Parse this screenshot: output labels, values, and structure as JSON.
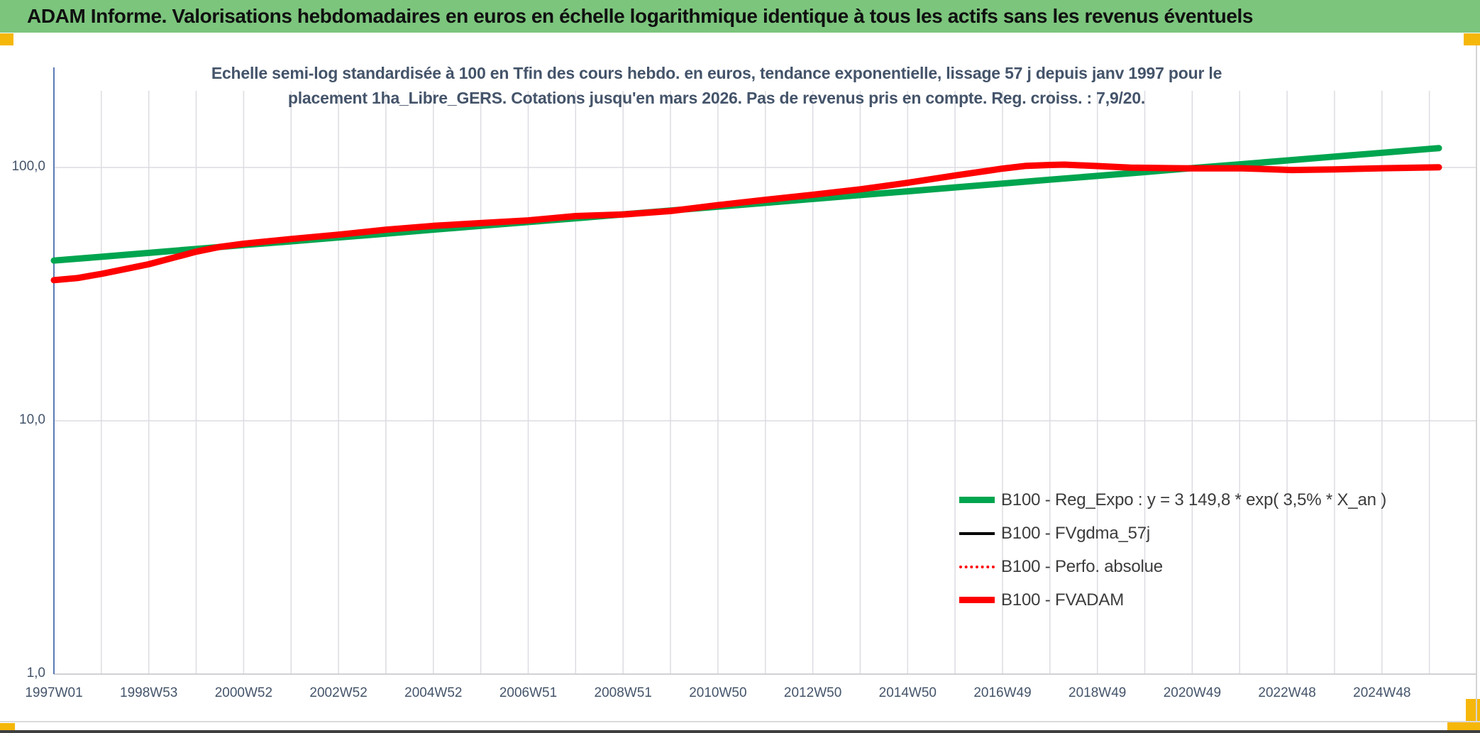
{
  "header": {
    "title": "ADAM Informe. Valorisations hebdomadaires en euros en échelle logarithmique identique à tous les actifs sans les revenus éventuels",
    "bg_color": "#7cc57d",
    "corner_marker_color": "#f6b70b"
  },
  "chart_data": {
    "type": "line",
    "title_line1": "Echelle semi-log standardisée à 100 en Tfin des cours hebdo. en euros, tendance exponentielle, lissage 57 j depuis janv 1997 pour le",
    "title_line2": "placement 1ha_Libre_GERS. Cotations jusqu'en mars 2026. Pas de revenus pris en compte. Reg. croiss. : 7,9/20.",
    "y_axis": {
      "scale": "log10",
      "ylim": [
        1,
        200
      ],
      "ticks": [
        {
          "label": "100,0",
          "value": 100
        },
        {
          "label": "10,0",
          "value": 10
        },
        {
          "label": "1,0",
          "value": 1
        }
      ]
    },
    "x_axis": {
      "start_year": 1997,
      "end_year": 2027,
      "tick_interval_years": 2,
      "gridline_interval_years": 1,
      "tick_labels": [
        "1997W01",
        "1998W53",
        "2000W52",
        "2002W52",
        "2004W52",
        "2006W51",
        "2008W51",
        "2010W50",
        "2012W50",
        "2014W50",
        "2016W49",
        "2018W49",
        "2020W49",
        "2022W48",
        "2024W48"
      ]
    },
    "grid": {
      "vertical": true,
      "horizontal_decades": true,
      "color": "#dcdce2"
    },
    "legend_position": "inside-bottom-right",
    "series": [
      {
        "name": "B100 - Reg_Expo : y = 3 149,8 * exp( 3,5% *  X_an )",
        "color": "#00a54f",
        "style": "solid",
        "width": 9,
        "x": [
          1997,
          1998,
          1999,
          2000,
          2001,
          2002,
          2003,
          2004,
          2005,
          2006,
          2007,
          2008,
          2009,
          2010,
          2011,
          2012,
          2013,
          2014,
          2015,
          2016,
          2017,
          2018,
          2019,
          2020,
          2021,
          2022,
          2023,
          2024,
          2025,
          2026,
          2026.2
        ],
        "values": [
          42.9,
          44.4,
          46.0,
          47.7,
          49.4,
          51.1,
          52.9,
          54.8,
          56.8,
          58.8,
          60.9,
          63.0,
          65.3,
          67.6,
          70.0,
          72.5,
          75.1,
          77.8,
          80.5,
          83.4,
          86.4,
          89.5,
          92.6,
          95.9,
          99.4,
          102.9,
          106.6,
          110.4,
          114.3,
          118.4,
          119.2
        ]
      },
      {
        "name": "B100 - FVgdma_57j",
        "color": "#000000",
        "style": "solid",
        "width": 4,
        "visually_coincident_with": "B100 - FVADAM",
        "x": [
          1997,
          1997.5,
          1998,
          1999,
          2000,
          2000.5,
          2001,
          2002,
          2003,
          2004,
          2005,
          2006,
          2007,
          2008,
          2009,
          2010,
          2011,
          2012,
          2013,
          2014,
          2015,
          2016,
          2017,
          2017.5,
          2018,
          2018.3,
          2019,
          2019.7,
          2020.3,
          2021,
          2022,
          2023.1,
          2024,
          2025,
          2026.2
        ],
        "values": [
          35.9,
          36.6,
          38.0,
          41.5,
          46.5,
          48.6,
          50.0,
          52.2,
          54.3,
          56.8,
          58.8,
          60.3,
          61.8,
          64.3,
          65.2,
          67.3,
          71.0,
          74.5,
          78.0,
          82.0,
          87.0,
          93.0,
          99.0,
          101.5,
          102.3,
          102.6,
          101.3,
          99.8,
          99.5,
          99.2,
          99.3,
          97.7,
          98.3,
          99.3,
          100.2
        ]
      },
      {
        "name": "B100 - Perfo. absolue",
        "color": "#ff0000",
        "style": "dotted",
        "width": 2,
        "visually_coincident_with": "B100 - FVADAM",
        "x": [
          1997,
          1997.5,
          1998,
          1999,
          2000,
          2000.5,
          2001,
          2002,
          2003,
          2004,
          2005,
          2006,
          2007,
          2008,
          2009,
          2010,
          2011,
          2012,
          2013,
          2014,
          2015,
          2016,
          2017,
          2017.5,
          2018,
          2018.3,
          2019,
          2019.7,
          2020.3,
          2021,
          2022,
          2023.1,
          2024,
          2025,
          2026.2
        ],
        "values": [
          35.9,
          36.6,
          38.0,
          41.5,
          46.5,
          48.6,
          50.0,
          52.2,
          54.3,
          56.8,
          58.8,
          60.3,
          61.8,
          64.3,
          65.2,
          67.3,
          71.0,
          74.5,
          78.0,
          82.0,
          87.0,
          93.0,
          99.0,
          101.5,
          102.3,
          102.6,
          101.3,
          99.8,
          99.5,
          99.2,
          99.3,
          97.7,
          98.3,
          99.3,
          100.2
        ]
      },
      {
        "name": "B100 - FVADAM",
        "color": "#ff0000",
        "style": "solid",
        "width": 9,
        "x": [
          1997,
          1997.5,
          1998,
          1999,
          2000,
          2000.5,
          2001,
          2002,
          2003,
          2004,
          2005,
          2006,
          2007,
          2008,
          2009,
          2010,
          2011,
          2012,
          2013,
          2014,
          2015,
          2016,
          2017,
          2017.5,
          2018,
          2018.3,
          2019,
          2019.7,
          2020.3,
          2021,
          2022,
          2023.1,
          2024,
          2025,
          2026.2
        ],
        "values": [
          35.9,
          36.6,
          38.0,
          41.5,
          46.5,
          48.6,
          50.0,
          52.2,
          54.3,
          56.8,
          58.8,
          60.3,
          61.8,
          64.3,
          65.2,
          67.3,
          71.0,
          74.5,
          78.0,
          82.0,
          87.0,
          93.0,
          99.0,
          101.5,
          102.3,
          102.6,
          101.3,
          99.8,
          99.5,
          99.2,
          99.3,
          97.7,
          98.3,
          99.3,
          100.2
        ]
      }
    ],
    "colors": {
      "axis_line": "#5b7ab5",
      "gridline": "#dcdce2",
      "baseline": "#c3c3c9",
      "tick_text": "#44546a",
      "legend_text": "#3c3c3c"
    }
  }
}
